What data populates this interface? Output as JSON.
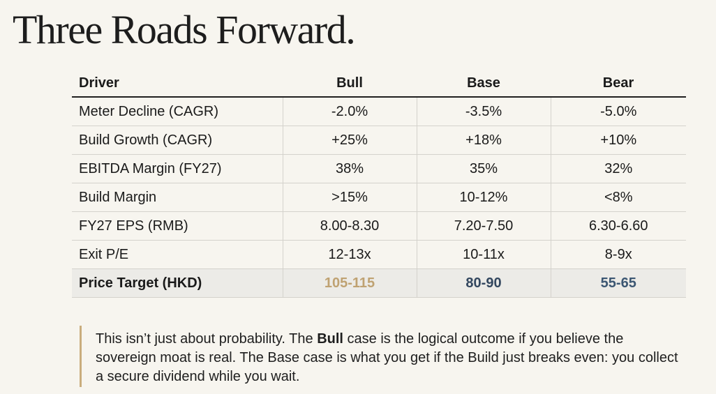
{
  "title": "Three Roads Forward.",
  "table": {
    "headers": [
      "Driver",
      "Bull",
      "Base",
      "Bear"
    ],
    "rows": [
      {
        "label": "Meter Decline (CAGR)",
        "bull": "-2.0%",
        "base": "-3.5%",
        "bear": "-5.0%"
      },
      {
        "label": "Build Growth (CAGR)",
        "bull": "+25%",
        "base": "+18%",
        "bear": "+10%"
      },
      {
        "label": "EBITDA Margin (FY27)",
        "bull": "38%",
        "base": "35%",
        "bear": "32%"
      },
      {
        "label": "Build Margin",
        "bull": ">15%",
        "base": "10-12%",
        "bear": "<8%"
      },
      {
        "label": "FY27 EPS (RMB)",
        "bull": "8.00-8.30",
        "base": "7.20-7.50",
        "bear": "6.30-6.60"
      },
      {
        "label": "Exit P/E",
        "bull": "12-13x",
        "base": "10-11x",
        "bear": "8-9x"
      }
    ],
    "target_row": {
      "label": "Price Target (HKD)",
      "bull": "105-115",
      "base": "80-90",
      "bear": "55-65"
    }
  },
  "colors": {
    "bull": "#bfa272",
    "base": "#33475f",
    "bear": "#3b5672",
    "quote_bar": "#c9ad7d"
  },
  "quote": {
    "part1": "This isn’t just about probability. The ",
    "bold": "Bull",
    "part2": " case is the logical outcome if you believe the sovereign moat is real. The Base case is what you get if the Build just breaks even: you collect a secure dividend while you wait."
  }
}
